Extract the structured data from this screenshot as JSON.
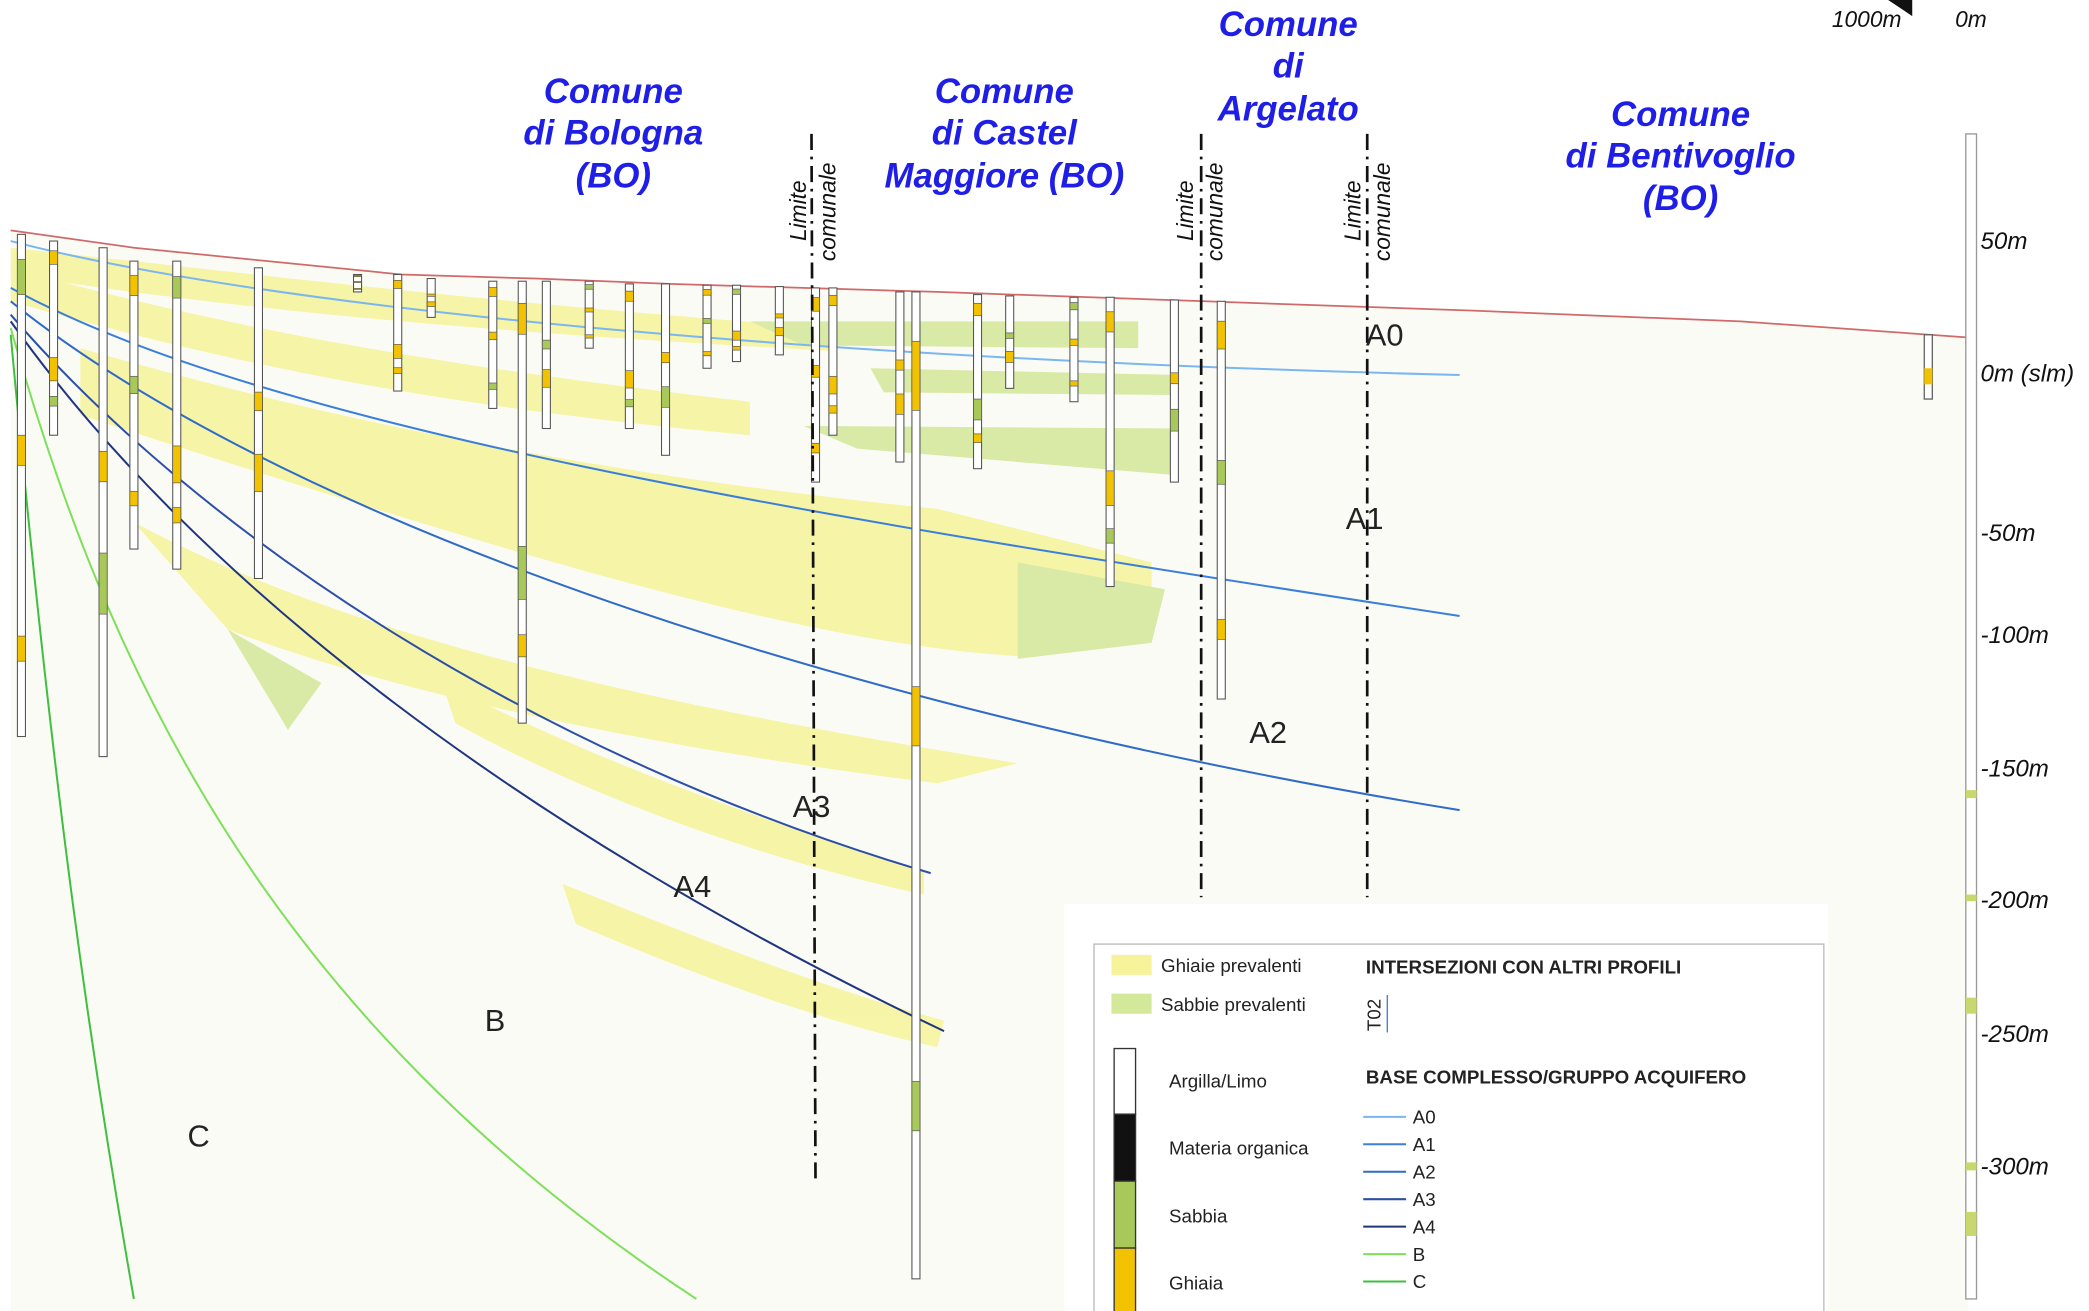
{
  "scale": [
    "1000m",
    "0m"
  ],
  "municipalities": [
    {
      "lines": [
        "Comune",
        "di Bologna",
        "(BO)"
      ]
    },
    {
      "lines": [
        "Comune",
        "di Castel",
        "Maggiore (BO)"
      ]
    },
    {
      "lines": [
        "Comune",
        "di",
        "Argelato"
      ]
    },
    {
      "lines": [
        "Comune",
        "di Bentivoglio",
        "(BO)"
      ]
    }
  ],
  "boundaries": [
    {
      "lines": [
        "Limite",
        "comunale"
      ]
    },
    {
      "lines": [
        "Limite",
        "comunale"
      ]
    },
    {
      "lines": [
        "Limite",
        "comunale"
      ]
    }
  ],
  "units": [
    "A0",
    "A1",
    "A2",
    "A3",
    "A4",
    "B",
    "C"
  ],
  "depth_axis": [
    "50m",
    "0m (slm)",
    "-50m",
    "-100m",
    "-150m",
    "-200m",
    "-250m",
    "-300m"
  ],
  "legend": {
    "facies": [
      "Ghiaie prevalenti",
      "Sabbie prevalenti"
    ],
    "lithology": [
      "Argilla/Limo",
      "Materia organica",
      "Sabbia",
      "Ghiaia"
    ],
    "intersections_title": "INTERSEZIONI CON ALTRI PROFILI",
    "intersection_label": "T02",
    "base_title": "BASE COMPLESSO/GRUPPO ACQUIFERO",
    "bases": [
      "A0",
      "A1",
      "A2",
      "A3",
      "A4",
      "B",
      "C"
    ]
  }
}
